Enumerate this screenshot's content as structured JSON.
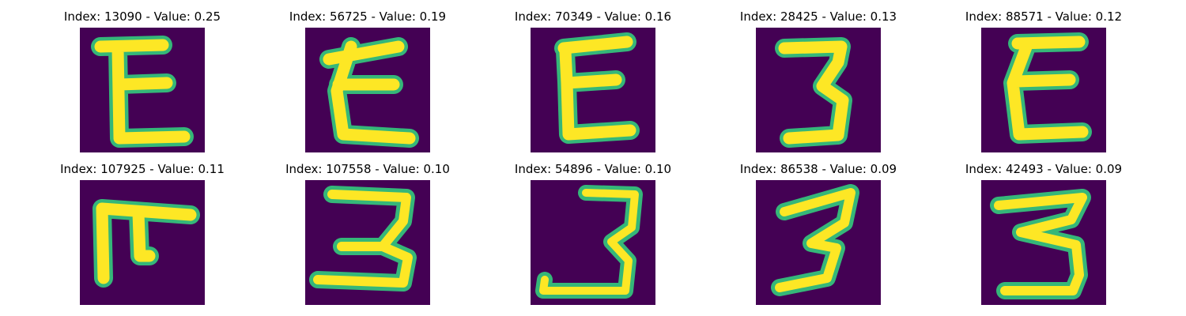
{
  "colors": {
    "background": "#440154",
    "low": "#31688e",
    "mid": "#35b779",
    "high": "#fde725"
  },
  "panels": [
    {
      "title": "Index: 13090 - Value: 0.25",
      "glyph": "E-shape"
    },
    {
      "title": "Index: 56725 - Value: 0.19",
      "glyph": "E-shape"
    },
    {
      "title": "Index: 70349 - Value: 0.16",
      "glyph": "E-shape"
    },
    {
      "title": "Index: 28425 - Value: 0.13",
      "glyph": "3-shape"
    },
    {
      "title": "Index: 88571 - Value: 0.12",
      "glyph": "E-shape"
    },
    {
      "title": "Index: 107925 - Value: 0.11",
      "glyph": "F-shape"
    },
    {
      "title": "Index: 107558 - Value: 0.10",
      "glyph": "3-shape"
    },
    {
      "title": "Index: 54896 - Value: 0.10",
      "glyph": "3-shape"
    },
    {
      "title": "Index: 86538 - Value: 0.09",
      "glyph": "3-shape"
    },
    {
      "title": "Index: 42493 - Value: 0.09",
      "glyph": "3-shape"
    }
  ]
}
